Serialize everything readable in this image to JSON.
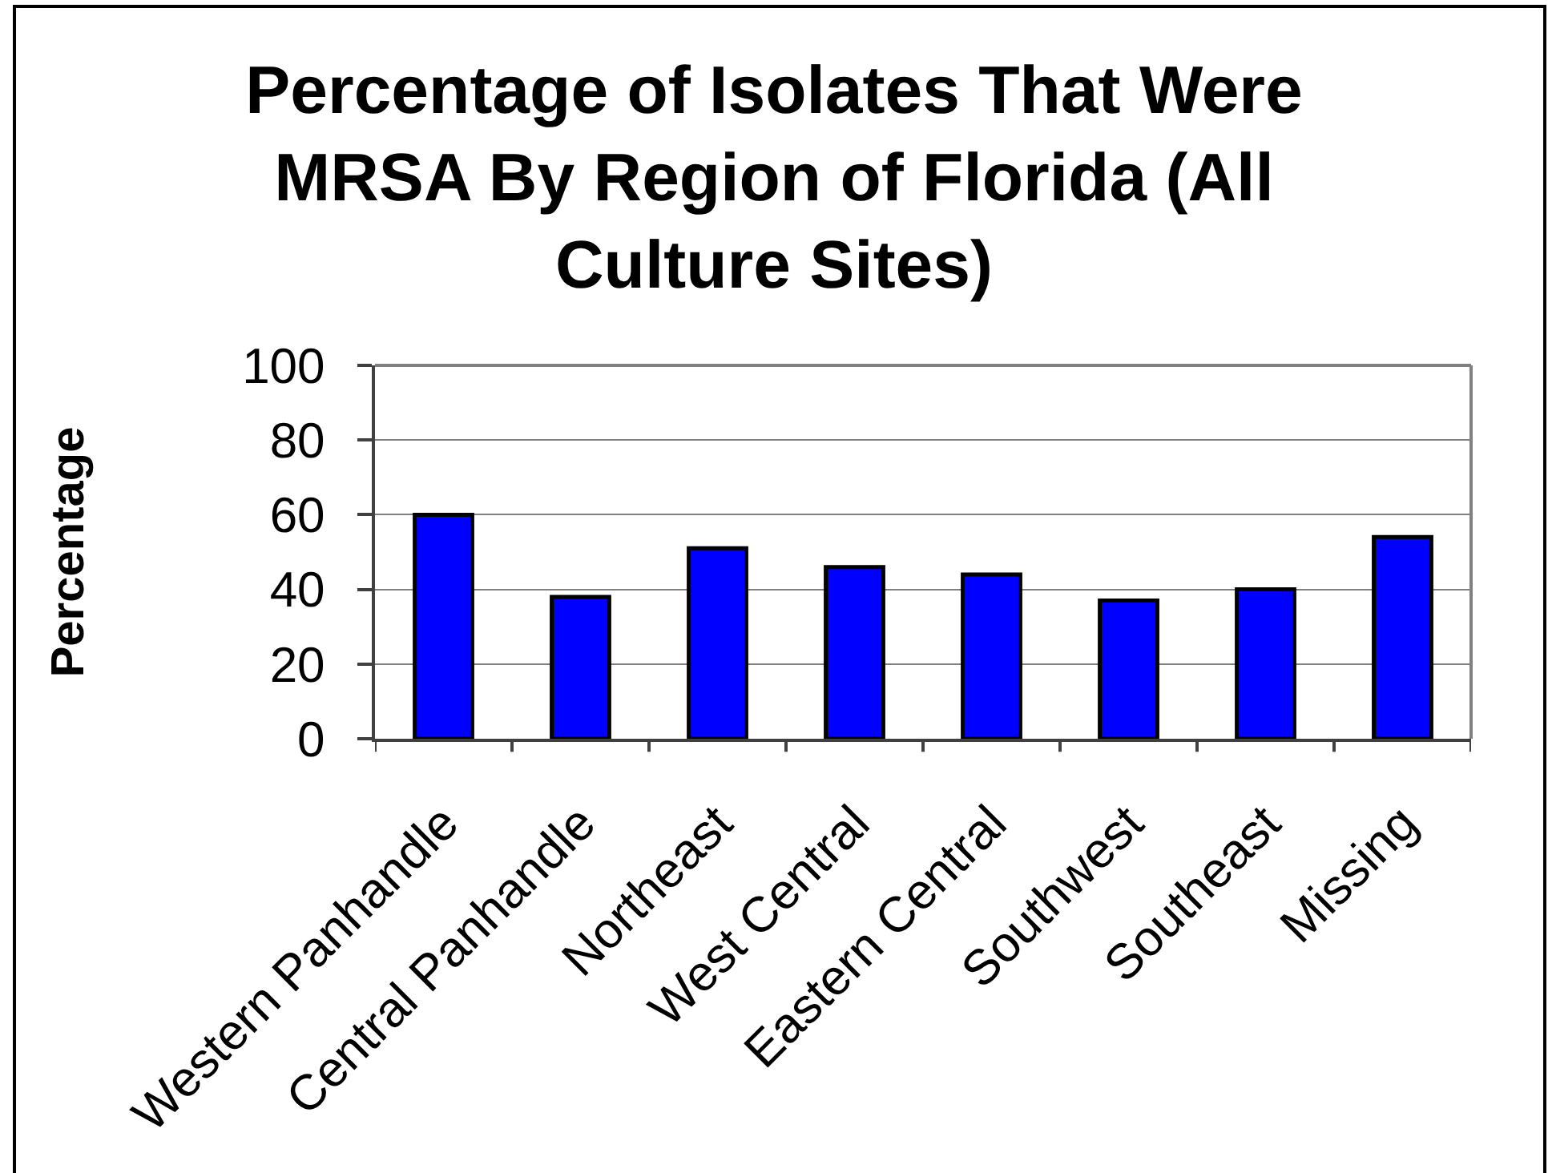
{
  "chart_data": {
    "type": "bar",
    "title": "Percentage of Isolates That Were MRSA By Region of Florida (All Culture Sites)",
    "ylabel": "Percentage",
    "categories": [
      "Western Panhandle",
      "Central Panhandle",
      "Northeast",
      "West Central",
      "Eastern Central",
      "Southwest",
      "Southeast",
      "Missing"
    ],
    "values": [
      60,
      38,
      51,
      46,
      44,
      37,
      40,
      54
    ],
    "color": "#0000ff",
    "ylim": [
      0,
      100
    ],
    "yticks": [
      0,
      20,
      40,
      60,
      80,
      100
    ],
    "grid": "y"
  }
}
